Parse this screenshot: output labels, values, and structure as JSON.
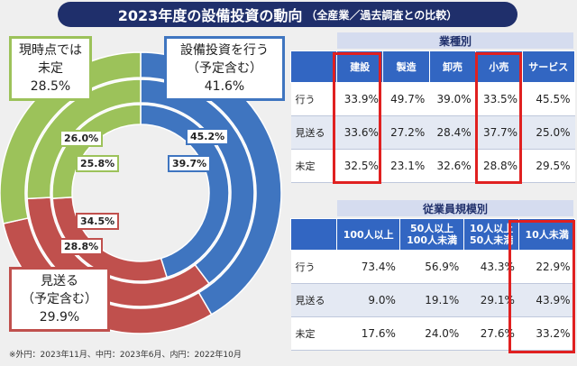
{
  "title": {
    "main": "2023年度の設備投資の動向",
    "sub": "（全産業／過去調査との比較）"
  },
  "chart_data": {
    "type": "pie",
    "categories": [
      "設備投資を行う（予定含む）",
      "見送る（予定含む）",
      "現時点では未定"
    ],
    "series": [
      {
        "values": [
          41.6,
          29.9,
          28.5
        ]
      },
      {
        "values": [
          39.7,
          34.5,
          25.8
        ]
      },
      {
        "values": [
          45.2,
          28.8,
          26.0
        ]
      }
    ]
  },
  "callouts": {
    "invest": {
      "l1": "設備投資を行う",
      "l2": "（予定含む）",
      "pct": "41.6%"
    },
    "skip": {
      "l1": "見送る",
      "l2": "（予定含む）",
      "pct": "29.9%"
    },
    "undecided": {
      "l1": "現時点では",
      "l2": "未定",
      "pct": "28.5%"
    }
  },
  "seg_labels": {
    "blue_outer": "45.2%",
    "blue_mid": "39.7%",
    "green_outer": "26.0%",
    "green_mid": "25.8%",
    "red_mid": "34.5%",
    "red_outer": "28.8%"
  },
  "footnote": "※外円：2023年11月、中円：2023年6月、内円：2022年10月",
  "colors": {
    "invest": "#3f75c0",
    "skip": "#c0504d",
    "undecided": "#9cc25a",
    "header": "#3266c2",
    "highlight": "#e02020"
  },
  "industry_table": {
    "label": "業種別",
    "columns": [
      "建設",
      "製造",
      "卸売",
      "小売",
      "サービス"
    ],
    "rows": [
      {
        "label": "行う",
        "values": [
          "33.9%",
          "49.7%",
          "39.0%",
          "33.5%",
          "45.5%"
        ]
      },
      {
        "label": "見送る",
        "values": [
          "33.6%",
          "27.2%",
          "28.4%",
          "37.7%",
          "25.0%"
        ]
      },
      {
        "label": "未定",
        "values": [
          "32.5%",
          "23.1%",
          "32.6%",
          "28.8%",
          "29.5%"
        ]
      }
    ]
  },
  "size_table": {
    "label": "従業員規模別",
    "columns": [
      "100人以上",
      "50人以上\n100人未満",
      "10人以上\n50人未満",
      "10人未満"
    ],
    "rows": [
      {
        "label": "行う",
        "values": [
          "73.4%",
          "56.9%",
          "43.3%",
          "22.9%"
        ]
      },
      {
        "label": "見送る",
        "values": [
          "9.0%",
          "19.1%",
          "29.1%",
          "43.9%"
        ]
      },
      {
        "label": "未定",
        "values": [
          "17.6%",
          "24.0%",
          "27.6%",
          "33.2%"
        ]
      }
    ]
  }
}
